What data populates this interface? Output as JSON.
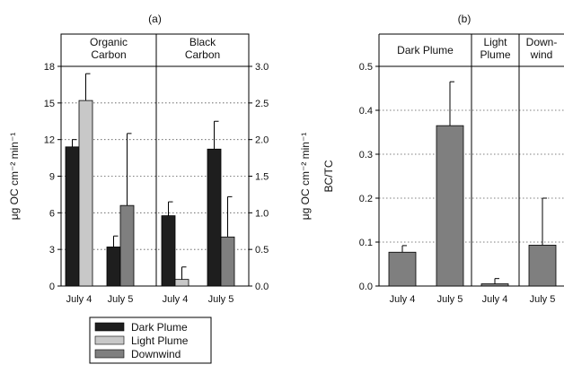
{
  "colors": {
    "dark_plume": "#1e1e1e",
    "light_plume": "#c8c8c8",
    "downwind": "#7f7f7f",
    "axis": "#000000",
    "grid": "#555555"
  },
  "chart_data": [
    {
      "id": "a",
      "type": "bar",
      "panel_label": "(a)",
      "left_ylabel": "μg OC cm⁻² min⁻¹",
      "right_ylabel": "μg OC cm⁻² min⁻¹",
      "left_ylim": [
        0,
        18
      ],
      "left_ticks": [
        "0",
        "3",
        "6",
        "9",
        "12",
        "15",
        "18"
      ],
      "right_ylim": [
        0,
        3.0
      ],
      "right_ticks": [
        "0.0",
        "0.5",
        "1.0",
        "1.5",
        "2.0",
        "2.5",
        "3.0"
      ],
      "grid": true,
      "groups": [
        {
          "label_lines": [
            "Organic",
            "Carbon"
          ],
          "axis": "left",
          "categories": [
            {
              "label": "July 4",
              "bars": [
                {
                  "series": "Dark Plume",
                  "value": 11.4,
                  "error": 0.6
                },
                {
                  "series": "Light Plume",
                  "value": 15.2,
                  "error": 2.2
                }
              ]
            },
            {
              "label": "July 5",
              "bars": [
                {
                  "series": "Dark Plume",
                  "value": 3.2,
                  "error": 0.9
                },
                {
                  "series": "Downwind",
                  "value": 6.6,
                  "error": 5.9
                }
              ]
            }
          ]
        },
        {
          "label_lines": [
            "Black",
            "Carbon"
          ],
          "axis": "right",
          "categories": [
            {
              "label": "July 4",
              "bars": [
                {
                  "series": "Dark Plume",
                  "value": 0.96,
                  "error": 0.19
                },
                {
                  "series": "Light Plume",
                  "value": 0.09,
                  "error": 0.17
                }
              ]
            },
            {
              "label": "July 5",
              "bars": [
                {
                  "series": "Dark Plume",
                  "value": 1.87,
                  "error": 0.38
                },
                {
                  "series": "Downwind",
                  "value": 0.67,
                  "error": 0.55
                }
              ]
            }
          ]
        }
      ],
      "legend": [
        {
          "series": "Dark Plume",
          "label": "Dark Plume"
        },
        {
          "series": "Light Plume",
          "label": "Light Plume"
        },
        {
          "series": "Downwind",
          "label": "Downwind"
        }
      ],
      "legend_position": "bottom"
    },
    {
      "id": "b",
      "type": "bar",
      "panel_label": "(b)",
      "ylabel": "BC/TC",
      "ylim": [
        0,
        0.5
      ],
      "ticks": [
        "0.0",
        "0.1",
        "0.2",
        "0.3",
        "0.4",
        "0.5"
      ],
      "grid": true,
      "groups": [
        {
          "label_lines": [
            "Dark Plume"
          ],
          "categories": [
            {
              "label": "July 4",
              "value": 0.077,
              "error": 0.015
            },
            {
              "label": "July 5",
              "value": 0.365,
              "error": 0.1
            }
          ]
        },
        {
          "label_lines": [
            "Light",
            "Plume"
          ],
          "categories": [
            {
              "label": "July 4",
              "value": 0.005,
              "error": 0.012
            }
          ]
        },
        {
          "label_lines": [
            "Down-",
            "wind"
          ],
          "categories": [
            {
              "label": "July 5",
              "value": 0.093,
              "error": 0.107
            }
          ]
        }
      ]
    }
  ]
}
